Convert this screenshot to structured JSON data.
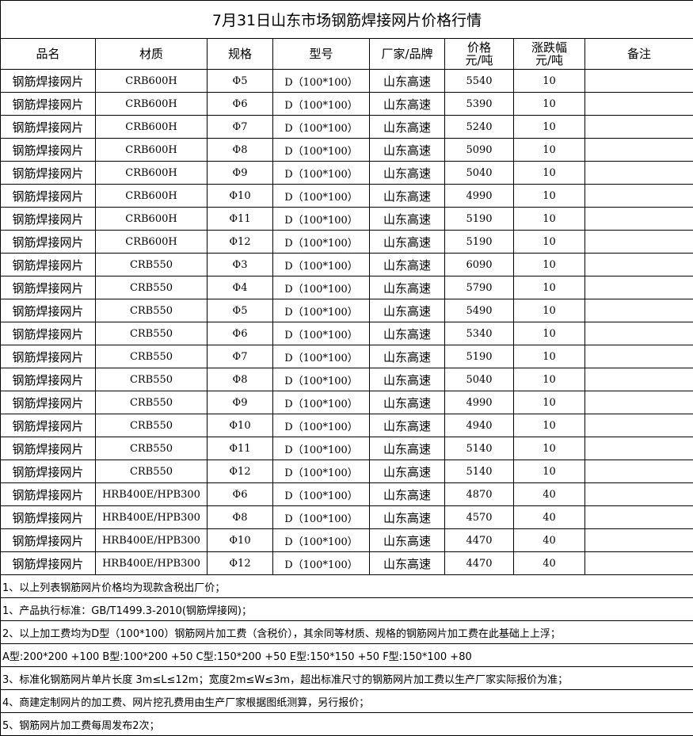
{
  "title": "7月31日山东市场钢筋焊接网片价格行情",
  "headers": [
    "品名",
    "材质",
    "规格",
    "型号",
    "厂家/品牌",
    "价格\n元/吨",
    "涨跌幅\n元/吨",
    "备注"
  ],
  "rows": [
    [
      "钢筋焊接网片",
      "CRB600H",
      "Φ5",
      "D（100*100）",
      "山东高速",
      "5540",
      "10",
      ""
    ],
    [
      "钢筋焊接网片",
      "CRB600H",
      "Φ6",
      "D（100*100）",
      "山东高速",
      "5390",
      "10",
      ""
    ],
    [
      "钢筋焊接网片",
      "CRB600H",
      "Φ7",
      "D（100*100）",
      "山东高速",
      "5240",
      "10",
      ""
    ],
    [
      "钢筋焊接网片",
      "CRB600H",
      "Φ8",
      "D（100*100）",
      "山东高速",
      "5090",
      "10",
      ""
    ],
    [
      "钢筋焊接网片",
      "CRB600H",
      "Φ9",
      "D（100*100）",
      "山东高速",
      "5040",
      "10",
      ""
    ],
    [
      "钢筋焊接网片",
      "CRB600H",
      "Φ10",
      "D（100*100）",
      "山东高速",
      "4990",
      "10",
      ""
    ],
    [
      "钢筋焊接网片",
      "CRB600H",
      "Φ11",
      "D（100*100）",
      "山东高速",
      "5190",
      "10",
      ""
    ],
    [
      "钢筋焊接网片",
      "CRB600H",
      "Φ12",
      "D（100*100）",
      "山东高速",
      "5190",
      "10",
      ""
    ],
    [
      "钢筋焊接网片",
      "CRB550",
      "Φ3",
      "D（100*100）",
      "山东高速",
      "6090",
      "10",
      ""
    ],
    [
      "钢筋焊接网片",
      "CRB550",
      "Φ4",
      "D（100*100）",
      "山东高速",
      "5790",
      "10",
      ""
    ],
    [
      "钢筋焊接网片",
      "CRB550",
      "Φ5",
      "D（100*100）",
      "山东高速",
      "5490",
      "10",
      ""
    ],
    [
      "钢筋焊接网片",
      "CRB550",
      "Φ6",
      "D（100*100）",
      "山东高速",
      "5340",
      "10",
      ""
    ],
    [
      "钢筋焊接网片",
      "CRB550",
      "Φ7",
      "D（100*100）",
      "山东高速",
      "5190",
      "10",
      ""
    ],
    [
      "钢筋焊接网片",
      "CRB550",
      "Φ8",
      "D（100*100）",
      "山东高速",
      "5040",
      "10",
      ""
    ],
    [
      "钢筋焊接网片",
      "CRB550",
      "Φ9",
      "D（100*100）",
      "山东高速",
      "4990",
      "10",
      ""
    ],
    [
      "钢筋焊接网片",
      "CRB550",
      "Φ10",
      "D（100*100）",
      "山东高速",
      "4940",
      "10",
      ""
    ],
    [
      "钢筋焊接网片",
      "CRB550",
      "Φ11",
      "D（100*100）",
      "山东高速",
      "5140",
      "10",
      ""
    ],
    [
      "钢筋焊接网片",
      "CRB550",
      "Φ12",
      "D（100*100）",
      "山东高速",
      "5140",
      "10",
      ""
    ],
    [
      "钢筋焊接网片",
      "HRB400E/HPB300",
      "Φ6",
      "D（100*100）",
      "山东高速",
      "4870",
      "40",
      ""
    ],
    [
      "钢筋焊接网片",
      "HRB400E/HPB300",
      "Φ8",
      "D（100*100）",
      "山东高速",
      "4570",
      "40",
      ""
    ],
    [
      "钢筋焊接网片",
      "HRB400E/HPB300",
      "Φ10",
      "D（100*100）",
      "山东高速",
      "4470",
      "40",
      ""
    ],
    [
      "钢筋焊接网片",
      "HRB400E/HPB300",
      "Φ12",
      "D（100*100）",
      "山东高速",
      "4470",
      "40",
      ""
    ]
  ],
  "notes": [
    "1、以上列表钢筋网片价格均为现款含税出厂价；",
    "1、产品执行标准：GB/T1499.3-2010(钢筋焊接网)；",
    "2、以上加工费均为D型（100*100）钢筋网片加工费（含税价），其余同等材质、规格的钢筋网片加工费在此基础上上浮；",
    "A型:200*200 +100  B型:100*200 +50  C型:150*200 +50  E型:150*150 +50  F型:150*100 +80",
    "3、标准化钢筋网片单片长度 3m≤L≤12m；宽度2m≤W≤3m，超出标准尺寸的钢筋网片加工费以生产厂家实际报价为准；",
    "4、商建定制网片的加工费、网片挖孔费用由生产厂家根据图纸测算，另行报价；",
    "5、钢筋网片加工费每周发布2次；"
  ]
}
